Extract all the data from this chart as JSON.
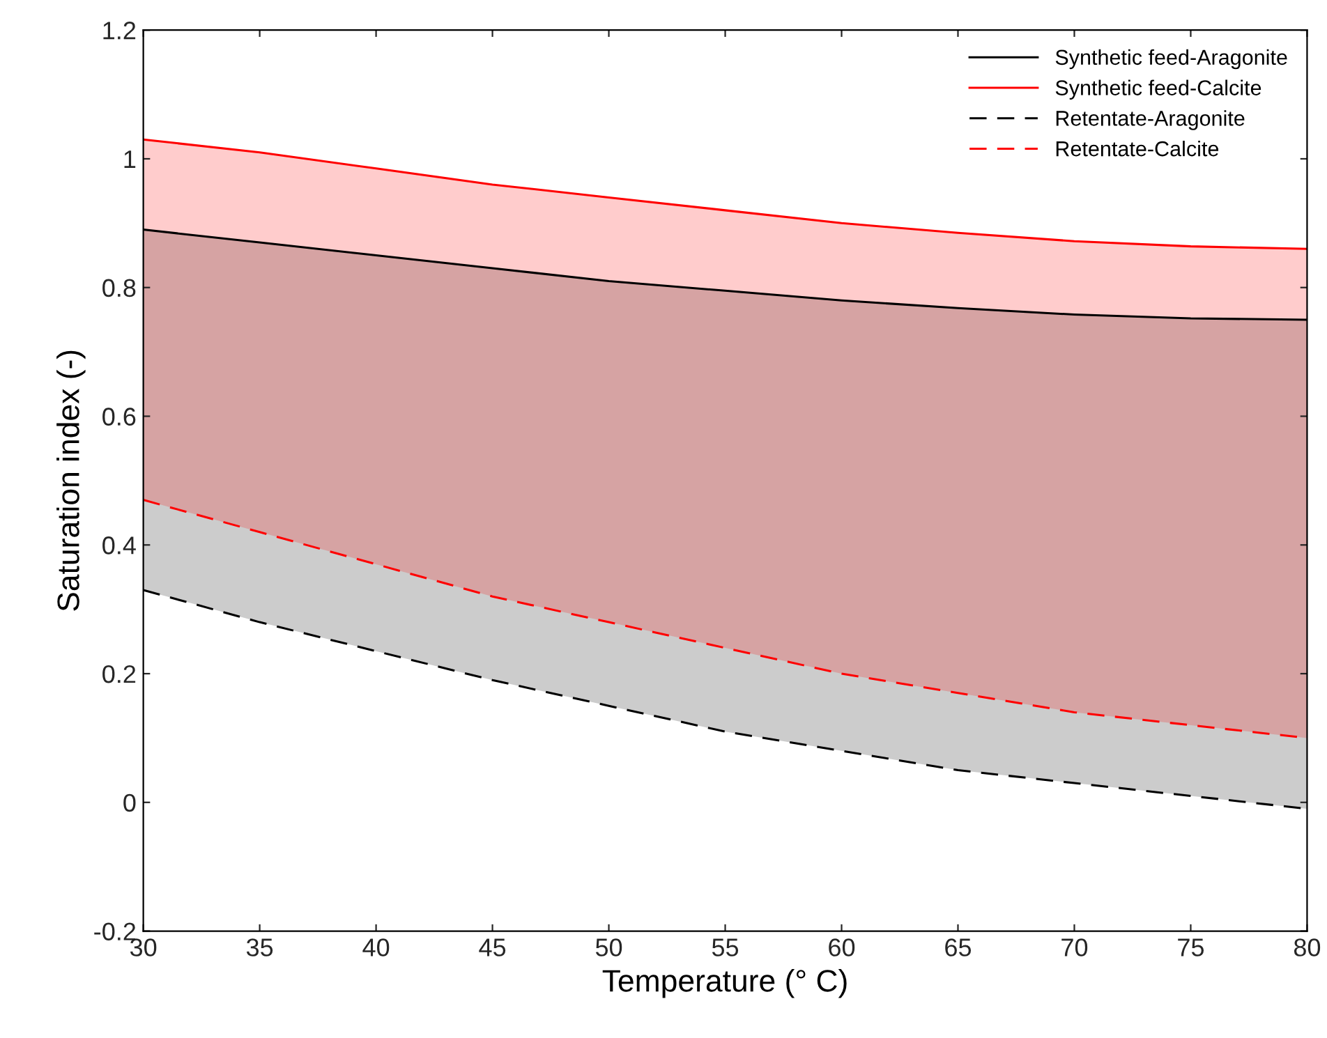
{
  "chart_data": {
    "type": "line",
    "xlabel": "Temperature (° C)",
    "ylabel": "Saturation index (-)",
    "x": [
      30,
      35,
      40,
      45,
      50,
      55,
      60,
      65,
      70,
      75,
      80
    ],
    "series": [
      {
        "name": "Synthetic feed-Aragonite",
        "color": "#000000",
        "line_style": "solid",
        "values": [
          0.89,
          0.87,
          0.85,
          0.83,
          0.81,
          0.795,
          0.78,
          0.768,
          0.758,
          0.752,
          0.75
        ],
        "upper": [
          0.89,
          0.87,
          0.85,
          0.83,
          0.81,
          0.795,
          0.78,
          0.768,
          0.758,
          0.752,
          0.75
        ],
        "lower": [
          0.33,
          0.28,
          0.235,
          0.19,
          0.15,
          0.11,
          0.08,
          0.05,
          0.03,
          0.01,
          -0.01
        ]
      },
      {
        "name": "Synthetic feed-Calcite",
        "color": "#ff0000",
        "line_style": "solid",
        "values": [
          1.03,
          1.01,
          0.985,
          0.96,
          0.94,
          0.92,
          0.9,
          0.885,
          0.872,
          0.864,
          0.86
        ],
        "upper": [
          1.03,
          1.01,
          0.985,
          0.96,
          0.94,
          0.92,
          0.9,
          0.885,
          0.872,
          0.864,
          0.86
        ],
        "lower": [
          0.47,
          0.42,
          0.37,
          0.32,
          0.28,
          0.24,
          0.2,
          0.17,
          0.14,
          0.12,
          0.1
        ]
      },
      {
        "name": "Retentate-Aragonite",
        "color": "#000000",
        "line_style": "dashed",
        "values": [
          0.33,
          0.28,
          0.235,
          0.19,
          0.15,
          0.11,
          0.08,
          0.05,
          0.03,
          0.01,
          -0.01
        ]
      },
      {
        "name": "Retentate-Calcite",
        "color": "#ff0000",
        "line_style": "dashed",
        "values": [
          0.47,
          0.42,
          0.37,
          0.32,
          0.28,
          0.24,
          0.2,
          0.17,
          0.14,
          0.12,
          0.1
        ]
      }
    ],
    "xlim": [
      30,
      80
    ],
    "xticks": [
      30,
      35,
      40,
      45,
      50,
      55,
      60,
      65,
      70,
      75,
      80
    ],
    "ylim": [
      -0.2,
      1.2
    ],
    "yticks": [
      -0.2,
      0,
      0.2,
      0.4,
      0.6,
      0.8,
      1,
      1.2
    ],
    "grid": false,
    "legend": "top right"
  }
}
